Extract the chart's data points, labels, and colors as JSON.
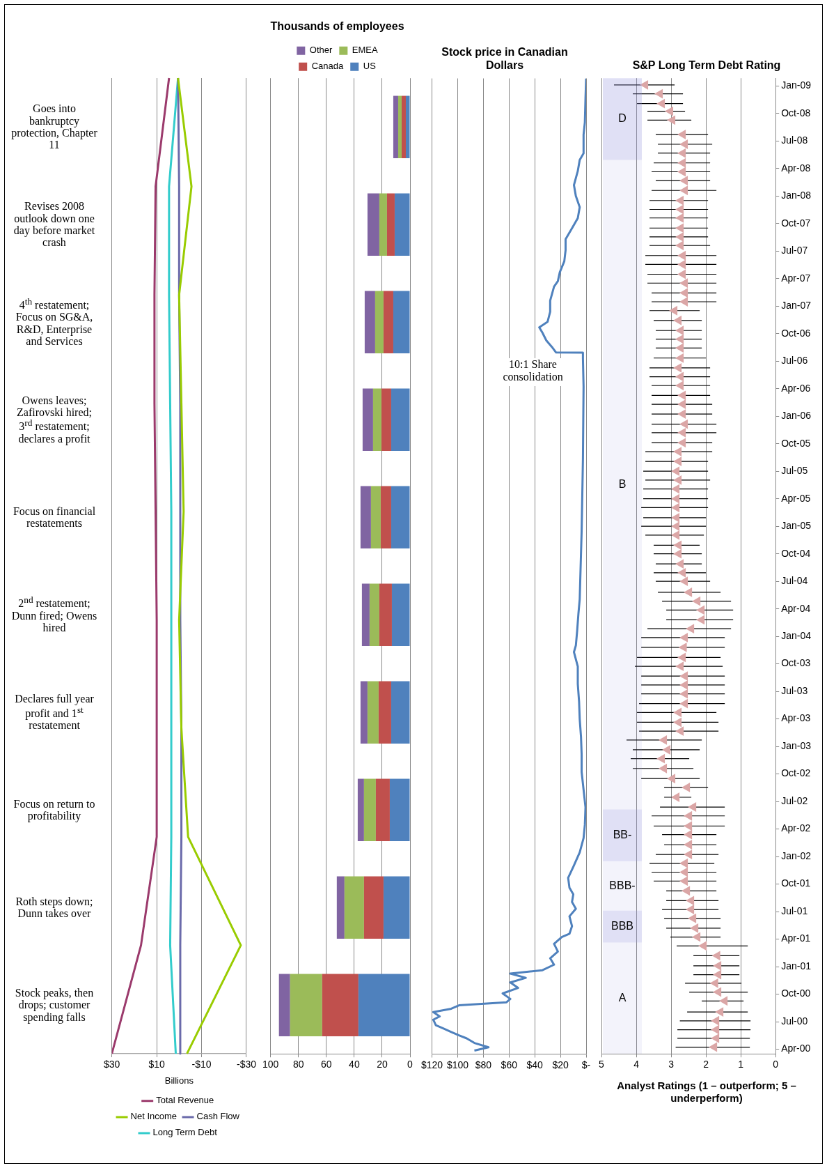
{
  "chart_data": [
    {
      "type": "other",
      "annotations": [
        "Stock peaks, then drops; customer spending falls",
        "Roth steps down; Dunn takes over",
        "Focus on return to profitability",
        "Declares full year profit and 1$^{st}$ restatement",
        "2$^{nd}$ restatement; Dunn fired; Owens hired",
        "Focus on financial restatements",
        "Owens leaves; Zafirovski hired; 3$^{rd}$ restatement; declares a profit",
        "4$^{th}$ restatement; Focus on SG&A, R&D, Enterprise and Services",
        "Revises 2008 outlook down one day before market crash",
        "Goes into bankruptcy protection, Chapter 11"
      ]
    },
    {
      "type": "line",
      "orientation": "horizontal",
      "xlabel": "Billions",
      "categories": [
        null,
        null,
        null,
        null,
        null,
        null,
        null,
        null,
        null,
        null
      ],
      "series": [
        {
          "name": "Total Revenue",
          "color": "#9b3a6c",
          "values": [
            4.5,
            10.5,
            11,
            11,
            10.5,
            10,
            10,
            10,
            17,
            30
          ]
        },
        {
          "name": "Net Income",
          "color": "#99cc00",
          "values": [
            0.5,
            -5.5,
            0,
            -1,
            -2,
            0,
            -1,
            -4,
            -27.5,
            -3.5
          ]
        },
        {
          "name": "Cash Flow",
          "color": "#6a6aaa",
          "values": [
            0.5,
            0,
            0,
            -0.5,
            -0.5,
            -0.5,
            -1,
            -1,
            -0.5,
            -0.5
          ]
        },
        {
          "name": "Long Term Debt",
          "color": "#33cccc",
          "values": [
            0.5,
            4.5,
            4.5,
            4,
            3.5,
            3.5,
            3.5,
            3.5,
            4,
            1.5
          ]
        }
      ],
      "xlim": [
        30,
        -30
      ],
      "xticks": [
        {
          "value": 30,
          "label": "$30"
        },
        {
          "value": 10,
          "label": "$10"
        },
        {
          "value": -10,
          "label": "-$10"
        },
        {
          "value": -30,
          "label": "-$30"
        }
      ],
      "grid": "x",
      "legend": "bottom",
      "tick_labels": "x"
    },
    {
      "type": "bar",
      "orientation": "horizontal",
      "title": "Thousands of employees",
      "categories": [
        null,
        null,
        null,
        null,
        null,
        null,
        null,
        null,
        null,
        null
      ],
      "stacked": true,
      "series": [
        {
          "name": "US",
          "color": "#4f81bd",
          "values": [
            3,
            11,
            12,
            13.5,
            13.5,
            13,
            13.5,
            14.5,
            19,
            37
          ]
        },
        {
          "name": "Canada",
          "color": "#c0504d",
          "values": [
            3,
            5.5,
            7,
            7,
            7.5,
            9,
            9,
            10,
            14,
            26
          ]
        },
        {
          "name": "EMEA",
          "color": "#9bbb59",
          "values": [
            2.5,
            5.5,
            6,
            6,
            7,
            7,
            8,
            8.5,
            14,
            23
          ]
        },
        {
          "name": "Other",
          "color": "#8064a2",
          "values": [
            3.5,
            8.5,
            7.5,
            7.5,
            7.5,
            5.5,
            5,
            4.5,
            5.5,
            8
          ]
        }
      ],
      "xlim": [
        100,
        0
      ],
      "xticks": [
        100,
        80,
        60,
        40,
        20,
        0
      ],
      "grid": "x",
      "legend": "top",
      "tick_labels": "x"
    },
    {
      "type": "line",
      "orientation": "horizontal",
      "title": "Stock price in Canadian Dollars",
      "color": "#4f81bd",
      "x": [
        "2000-03-27",
        "2000-04-08",
        "2000-04-22",
        "2000-05-07",
        "2000-05-17",
        "2000-05-28",
        "2000-06-09",
        "2000-06-20",
        "2000-07-08",
        "2000-07-19",
        "2000-08-03",
        "2000-08-14",
        "2000-08-25",
        "2000-09-05",
        "2000-09-16",
        "2000-10-04",
        "2000-10-22",
        "2000-11-10",
        "2000-11-25",
        "2000-12-09",
        "2000-12-20",
        "2001-01-08",
        "2001-01-29",
        "2001-02-21",
        "2001-03-16",
        "2001-04-08",
        "2001-04-19",
        "2001-05-14",
        "2001-06-16",
        "2001-07-11",
        "2001-08-03",
        "2001-08-28",
        "2001-09-20",
        "2001-10-22",
        "2001-11-28",
        "2002-01-15",
        "2002-03-02",
        "2002-04-15",
        "2002-06-13",
        "2002-08-10",
        "2002-10-08",
        "2002-12-05",
        "2003-02-03",
        "2003-04-01",
        "2003-05-28",
        "2003-07-26",
        "2003-09-23",
        "2003-11-10",
        "2003-12-02",
        "2004-01-19",
        "2004-03-16",
        "2004-05-03",
        "2004-12-16",
        "2005-08-10",
        "2006-04-08",
        "2006-07-11",
        "2006-07-29",
        "2006-07-30",
        "2006-08-17",
        "2006-09-09",
        "2006-10-04",
        "2006-10-22",
        "2006-11-10",
        "2006-12-13",
        "2007-01-19",
        "2007-03-05",
        "2007-03-23",
        "2007-04-22",
        "2007-05-28",
        "2007-07-04",
        "2007-08-10",
        "2007-09-16",
        "2007-10-19",
        "2007-11-25",
        "2008-01-01",
        "2008-02-07",
        "2008-03-23",
        "2008-04-29",
        "2008-05-21",
        "2008-07-22",
        "2008-09-02",
        "2008-11-21",
        "2009-01-26"
      ],
      "values": [
        87,
        76,
        87,
        93,
        99,
        105,
        111,
        117,
        119,
        114,
        119,
        105,
        99,
        62,
        59,
        65,
        53,
        59,
        47,
        59,
        34,
        25,
        28,
        22,
        25,
        19,
        13,
        11,
        13,
        8,
        11,
        10,
        13,
        14,
        10,
        5,
        2,
        1,
        0.5,
        2,
        3.5,
        3.5,
        4,
        5,
        5.5,
        6.5,
        6.5,
        9.5,
        8,
        7,
        6,
        5,
        3.5,
        2.5,
        2,
        2.5,
        2.5,
        23.5,
        26.5,
        31,
        34,
        36.5,
        30,
        28,
        28,
        25,
        22,
        20.5,
        17,
        16,
        16,
        11,
        6.5,
        5,
        8,
        9.5,
        6.5,
        5,
        2,
        2,
        1,
        0.5,
        0
      ],
      "ylim": [
        "2000-03-16",
        "2009-01-26"
      ],
      "xlim": [
        120,
        0
      ],
      "xticks": [
        {
          "value": 120,
          "label": "$120"
        },
        {
          "value": 100,
          "label": "$100"
        },
        {
          "value": 80,
          "label": "$80"
        },
        {
          "value": 60,
          "label": "$60"
        },
        {
          "value": 40,
          "label": "$40"
        },
        {
          "value": 20,
          "label": "$20"
        },
        {
          "value": 0,
          "label": "$-"
        }
      ],
      "grid": "x",
      "tick_labels": "x",
      "annotations": [
        {
          "text": "10:1 Share consolidation",
          "x": 23.5,
          "y": "2006-07-29"
        }
      ]
    },
    {
      "type": "scatter",
      "orientation": "horizontal",
      "title": "S&P Long Term Debt Rating",
      "color": "#dba6a6",
      "marker": "triangle",
      "x": [
        "2000-04-08",
        "2000-05-07",
        "2000-06-05",
        "2000-07-04",
        "2000-08-03",
        "2000-09-09",
        "2000-10-08",
        "2000-11-07",
        "2000-12-05",
        "2001-01-04",
        "2001-02-07",
        "2001-03-09",
        "2001-04-08",
        "2001-05-07",
        "2001-06-09",
        "2001-07-08",
        "2001-08-07",
        "2001-09-09",
        "2001-10-11",
        "2001-11-10",
        "2001-12-09",
        "2002-01-08",
        "2002-02-10",
        "2002-03-13",
        "2002-04-11",
        "2002-05-14",
        "2002-06-13",
        "2002-07-15",
        "2002-08-17",
        "2002-09-16",
        "2002-10-19",
        "2002-11-21",
        "2002-12-20",
        "2003-01-22",
        "2003-02-21",
        "2003-03-20",
        "2003-04-22",
        "2003-05-21",
        "2003-06-23",
        "2003-07-22",
        "2003-08-21",
        "2003-09-23",
        "2003-10-22",
        "2003-11-25",
        "2003-12-27",
        "2004-01-26",
        "2004-02-25",
        "2004-03-27",
        "2004-04-26",
        "2004-05-25",
        "2004-07-01",
        "2004-07-29",
        "2004-08-28",
        "2004-10-01",
        "2004-10-29",
        "2004-12-02",
        "2005-01-01",
        "2005-01-29",
        "2005-03-02",
        "2005-04-01",
        "2005-05-03",
        "2005-06-02",
        "2005-07-01",
        "2005-08-03",
        "2005-09-05",
        "2005-10-04",
        "2005-11-07",
        "2005-12-05",
        "2006-01-08",
        "2006-02-10",
        "2006-03-09",
        "2006-04-11",
        "2006-05-10",
        "2006-06-09",
        "2006-07-11",
        "2006-08-14",
        "2006-09-13",
        "2006-10-11",
        "2006-11-14",
        "2006-12-16",
        "2007-01-15",
        "2007-02-14",
        "2007-03-16",
        "2007-04-15",
        "2007-05-17",
        "2007-06-16",
        "2007-07-19",
        "2007-08-17",
        "2007-09-16",
        "2007-10-19",
        "2007-11-17",
        "2007-12-16",
        "2008-01-19",
        "2008-02-21",
        "2008-03-20",
        "2008-04-19",
        "2008-05-21",
        "2008-06-20",
        "2008-07-22",
        "2008-09-09",
        "2008-10-08",
        "2008-11-03",
        "2008-12-05",
        "2009-01-04"
      ],
      "values": [
        1.76,
        1.7,
        1.7,
        1.7,
        1.58,
        1.46,
        1.64,
        1.73,
        1.64,
        1.64,
        1.67,
        2.06,
        2.24,
        2.3,
        2.36,
        2.42,
        2.42,
        2.54,
        2.6,
        2.6,
        2.6,
        2.48,
        2.48,
        2.48,
        2.48,
        2.48,
        2.36,
        2.84,
        2.54,
        2.96,
        3.2,
        3.26,
        3.1,
        3.2,
        2.72,
        2.78,
        2.78,
        2.6,
        2.6,
        2.6,
        2.6,
        2.72,
        2.66,
        2.63,
        2.6,
        2.42,
        2.12,
        2.12,
        2.24,
        2.48,
        2.6,
        2.66,
        2.72,
        2.78,
        2.78,
        2.84,
        2.84,
        2.84,
        2.84,
        2.84,
        2.84,
        2.78,
        2.84,
        2.78,
        2.78,
        2.66,
        2.66,
        2.6,
        2.66,
        2.66,
        2.66,
        2.72,
        2.72,
        2.78,
        2.72,
        2.72,
        2.72,
        2.72,
        2.78,
        2.9,
        2.6,
        2.6,
        2.6,
        2.66,
        2.66,
        2.66,
        2.72,
        2.72,
        2.72,
        2.72,
        2.72,
        2.72,
        2.6,
        2.6,
        2.66,
        2.66,
        2.66,
        2.6,
        2.66,
        2.96,
        3.02,
        3.26,
        3.32,
        3.74
      ],
      "errors": [
        [
          0.74,
          2.87
        ],
        [
          0.74,
          2.82
        ],
        [
          0.72,
          2.82
        ],
        [
          0.72,
          2.75
        ],
        [
          0.8,
          2.54
        ],
        [
          0.92,
          2.12
        ],
        [
          0.8,
          2.48
        ],
        [
          0.98,
          2.6
        ],
        [
          1.04,
          2.36
        ],
        [
          1.04,
          2.36
        ],
        [
          1.04,
          2.36
        ],
        [
          0.8,
          2.84
        ],
        [
          1.58,
          3.02
        ],
        [
          1.58,
          3.14
        ],
        [
          1.58,
          3.2
        ],
        [
          1.64,
          3.26
        ],
        [
          1.64,
          3.14
        ],
        [
          1.7,
          3.14
        ],
        [
          1.7,
          3.5
        ],
        [
          1.7,
          3.56
        ],
        [
          1.76,
          3.62
        ],
        [
          1.64,
          3.44
        ],
        [
          1.7,
          3.2
        ],
        [
          1.7,
          3.26
        ],
        [
          1.46,
          3.5
        ],
        [
          1.46,
          3.56
        ],
        [
          1.46,
          3.32
        ],
        [
          2.42,
          3.2
        ],
        [
          1.94,
          3.2
        ],
        [
          2.18,
          3.86
        ],
        [
          2.36,
          4.1
        ],
        [
          2.48,
          4.16
        ],
        [
          2.18,
          4.1
        ],
        [
          2.12,
          4.28
        ],
        [
          1.64,
          3.92
        ],
        [
          1.64,
          3.98
        ],
        [
          1.7,
          3.98
        ],
        [
          1.46,
          3.92
        ],
        [
          1.46,
          3.86
        ],
        [
          1.46,
          3.86
        ],
        [
          1.46,
          3.86
        ],
        [
          1.52,
          4.04
        ],
        [
          1.58,
          3.98
        ],
        [
          1.46,
          3.86
        ],
        [
          1.46,
          3.86
        ],
        [
          1.28,
          3.68
        ],
        [
          1.22,
          3.14
        ],
        [
          1.22,
          3.14
        ],
        [
          1.28,
          3.26
        ],
        [
          1.58,
          3.38
        ],
        [
          1.88,
          3.44
        ],
        [
          2.0,
          3.5
        ],
        [
          2.12,
          3.44
        ],
        [
          2.12,
          3.5
        ],
        [
          2.18,
          3.5
        ],
        [
          2.06,
          3.74
        ],
        [
          2.0,
          3.86
        ],
        [
          2.0,
          3.8
        ],
        [
          1.94,
          3.86
        ],
        [
          1.94,
          3.8
        ],
        [
          1.94,
          3.8
        ],
        [
          1.88,
          3.74
        ],
        [
          1.94,
          3.8
        ],
        [
          1.94,
          3.74
        ],
        [
          1.82,
          3.74
        ],
        [
          1.82,
          3.56
        ],
        [
          1.7,
          3.56
        ],
        [
          1.7,
          3.56
        ],
        [
          1.82,
          3.56
        ],
        [
          1.82,
          3.56
        ],
        [
          1.88,
          3.56
        ],
        [
          1.88,
          3.56
        ],
        [
          1.88,
          3.62
        ],
        [
          1.88,
          3.62
        ],
        [
          2.0,
          3.5
        ],
        [
          2.12,
          3.44
        ],
        [
          2.12,
          3.44
        ],
        [
          2.12,
          3.44
        ],
        [
          2.12,
          3.5
        ],
        [
          2.18,
          3.62
        ],
        [
          1.7,
          3.56
        ],
        [
          1.7,
          3.56
        ],
        [
          1.7,
          3.68
        ],
        [
          1.7,
          3.68
        ],
        [
          1.7,
          3.74
        ],
        [
          1.7,
          3.74
        ],
        [
          1.88,
          3.62
        ],
        [
          1.94,
          3.62
        ],
        [
          1.94,
          3.62
        ],
        [
          1.94,
          3.62
        ],
        [
          1.94,
          3.62
        ],
        [
          1.94,
          3.62
        ],
        [
          1.7,
          3.56
        ],
        [
          1.88,
          3.44
        ],
        [
          1.88,
          3.56
        ],
        [
          1.88,
          3.5
        ],
        [
          1.88,
          3.38
        ],
        [
          1.82,
          3.38
        ],
        [
          1.94,
          3.44
        ],
        [
          2.42,
          3.68
        ],
        [
          2.6,
          3.68
        ],
        [
          2.66,
          3.98
        ],
        [
          2.66,
          4.1
        ],
        [
          2.9,
          4.64
        ]
      ],
      "ylim": [
        "2000-03-16",
        "2009-01-26"
      ],
      "yticks": [
        {
          "value": "2000-04",
          "label": "Apr-00"
        },
        {
          "value": "2000-07",
          "label": "Jul-00"
        },
        {
          "value": "2000-10",
          "label": "Oct-00"
        },
        {
          "value": "2001-01",
          "label": "Jan-01"
        },
        {
          "value": "2001-04",
          "label": "Apr-01"
        },
        {
          "value": "2001-07",
          "label": "Jul-01"
        },
        {
          "value": "2001-10",
          "label": "Oct-01"
        },
        {
          "value": "2002-01",
          "label": "Jan-02"
        },
        {
          "value": "2002-04",
          "label": "Apr-02"
        },
        {
          "value": "2002-07",
          "label": "Jul-02"
        },
        {
          "value": "2002-10",
          "label": "Oct-02"
        },
        {
          "value": "2003-01",
          "label": "Jan-03"
        },
        {
          "value": "2003-04",
          "label": "Apr-03"
        },
        {
          "value": "2003-07",
          "label": "Jul-03"
        },
        {
          "value": "2003-10",
          "label": "Oct-03"
        },
        {
          "value": "2004-01",
          "label": "Jan-04"
        },
        {
          "value": "2004-04",
          "label": "Apr-04"
        },
        {
          "value": "2004-07",
          "label": "Jul-04"
        },
        {
          "value": "2004-10",
          "label": "Oct-04"
        },
        {
          "value": "2005-01",
          "label": "Jan-05"
        },
        {
          "value": "2005-04",
          "label": "Apr-05"
        },
        {
          "value": "2005-07",
          "label": "Jul-05"
        },
        {
          "value": "2005-10",
          "label": "Oct-05"
        },
        {
          "value": "2006-01",
          "label": "Jan-06"
        },
        {
          "value": "2006-04",
          "label": "Apr-06"
        },
        {
          "value": "2006-07",
          "label": "Jul-06"
        },
        {
          "value": "2006-10",
          "label": "Oct-06"
        },
        {
          "value": "2007-01",
          "label": "Jan-07"
        },
        {
          "value": "2007-04",
          "label": "Apr-07"
        },
        {
          "value": "2007-07",
          "label": "Jul-07"
        },
        {
          "value": "2007-10",
          "label": "Oct-07"
        },
        {
          "value": "2008-01",
          "label": "Jan-08"
        },
        {
          "value": "2008-04",
          "label": "Apr-08"
        },
        {
          "value": "2008-07",
          "label": "Jul-08"
        },
        {
          "value": "2008-10",
          "label": "Oct-08"
        },
        {
          "value": "2009-01",
          "label": "Jan-09"
        }
      ],
      "xlim": [
        5,
        0
      ],
      "xticks": [
        5,
        4,
        3,
        2,
        1,
        0
      ],
      "grid": "x",
      "bands": [
        {
          "axis": "y",
          "from": "2000-03-16",
          "to": "2001-03-20",
          "label": "A",
          "color": "#9999dd"
        },
        {
          "axis": "y",
          "from": "2001-03-20",
          "to": "2001-07-04",
          "label": "BBB",
          "color": "#9999dd"
        },
        {
          "axis": "y",
          "from": "2001-07-04",
          "to": "2001-12-16",
          "label": "BBB-",
          "color": "#9999dd"
        },
        {
          "axis": "y",
          "from": "2001-12-16",
          "to": "2002-06-05",
          "label": "BB-",
          "color": "#9999dd"
        },
        {
          "axis": "y",
          "from": "2002-06-05",
          "to": "2008-04-29",
          "label": "B",
          "color": "#9999dd"
        },
        {
          "axis": "y",
          "from": "2008-04-29",
          "to": "2009-01-26",
          "label": "D",
          "color": "#9999dd"
        }
      ],
      "annotations": [
        "Analyst Ratings (1 – outperform; 5 – underperform)"
      ]
    }
  ]
}
